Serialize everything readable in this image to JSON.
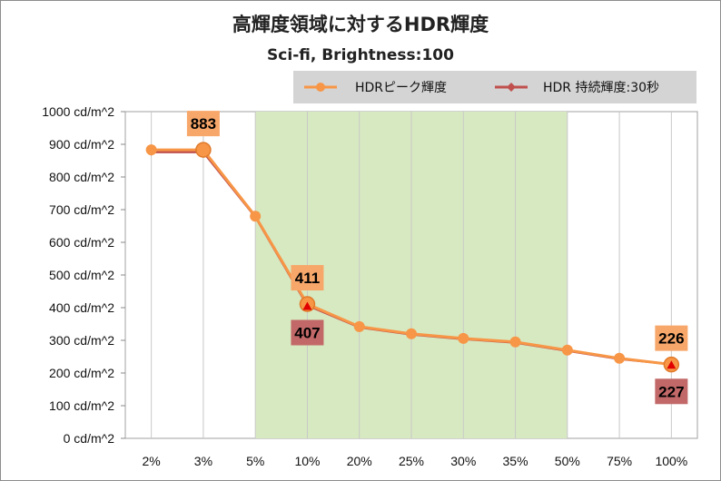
{
  "chart_data": {
    "type": "line",
    "title": "高輝度領域に対するHDR輝度",
    "subtitle": "Sci-fi, Brightness:100",
    "categories": [
      "2%",
      "3%",
      "5%",
      "10%",
      "20%",
      "25%",
      "30%",
      "35%",
      "50%",
      "75%",
      "100%"
    ],
    "y_tick_labels": [
      "0 cd/m^2",
      "100 cd/m^2",
      "200 cd/m^2",
      "300 cd/m^2",
      "400 cd/m^2",
      "500 cd/m^2",
      "600 cd/m^2",
      "700 cd/m^2",
      "800 cd/m^2",
      "900 cd/m^2",
      "1000 cd/m^2"
    ],
    "ylim": [
      0,
      1000
    ],
    "highlight_range": [
      "5%",
      "50%"
    ],
    "grid": "vertical",
    "legend_position": "top-right",
    "series": [
      {
        "name": "HDRピーク輝度",
        "color": "#f79646",
        "values": [
          883,
          883,
          680,
          411,
          342,
          320,
          306,
          295,
          270,
          245,
          226
        ]
      },
      {
        "name": "HDR 持続輝度:30秒",
        "color": "#c0504d",
        "values": [
          876,
          876,
          678,
          407,
          340,
          318,
          304,
          293,
          268,
          243,
          227
        ]
      }
    ],
    "data_labels": [
      {
        "series": 0,
        "category": "3%",
        "text": "883",
        "position": "above"
      },
      {
        "series": 0,
        "category": "10%",
        "text": "411",
        "position": "above"
      },
      {
        "series": 0,
        "category": "100%",
        "text": "226",
        "position": "above"
      },
      {
        "series": 1,
        "category": "10%",
        "text": "407",
        "position": "below"
      },
      {
        "series": 1,
        "category": "100%",
        "text": "227",
        "position": "below"
      }
    ],
    "label_colors": {
      "peak_box": "#f8a76a",
      "sustained_box": "#c26868"
    }
  }
}
